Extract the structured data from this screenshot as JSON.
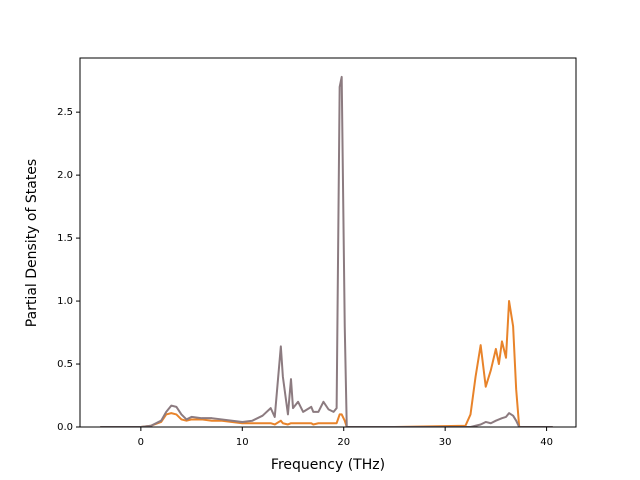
{
  "chart_data": {
    "type": "line",
    "x_label": "Frequency (THz)",
    "y_label": "Partial Density of States",
    "x": [
      -4,
      0,
      1,
      2,
      2.5,
      3,
      3.5,
      4,
      4.5,
      5,
      6,
      7,
      8,
      9,
      10,
      11,
      12,
      12.8,
      13.2,
      13.8,
      14,
      14.5,
      14.8,
      15,
      15.5,
      16,
      16.8,
      17,
      17.5,
      18,
      18.5,
      19,
      19.3,
      19.6,
      19.8,
      20.1,
      20.3,
      25,
      32,
      32.5,
      33,
      33.5,
      34,
      34.5,
      35,
      35.3,
      35.6,
      36,
      36.3,
      36.7,
      37,
      37.3,
      40.6
    ],
    "series": [
      {
        "color": "#e8832a",
        "values": [
          0,
          0,
          0.01,
          0.04,
          0.1,
          0.11,
          0.1,
          0.06,
          0.05,
          0.06,
          0.06,
          0.05,
          0.05,
          0.04,
          0.03,
          0.03,
          0.03,
          0.03,
          0.02,
          0.05,
          0.03,
          0.02,
          0.03,
          0.03,
          0.03,
          0.03,
          0.03,
          0.02,
          0.03,
          0.03,
          0.03,
          0.03,
          0.03,
          0.1,
          0.1,
          0.05,
          0,
          0,
          0.01,
          0.1,
          0.4,
          0.65,
          0.32,
          0.45,
          0.62,
          0.5,
          0.68,
          0.55,
          1.0,
          0.8,
          0.3,
          0,
          0
        ]
      },
      {
        "color": "#8c7b80",
        "values": [
          0,
          0,
          0.01,
          0.05,
          0.12,
          0.17,
          0.16,
          0.1,
          0.06,
          0.08,
          0.07,
          0.07,
          0.06,
          0.05,
          0.04,
          0.05,
          0.09,
          0.15,
          0.08,
          0.64,
          0.4,
          0.1,
          0.38,
          0.15,
          0.2,
          0.12,
          0.16,
          0.12,
          0.12,
          0.2,
          0.14,
          0.12,
          0.15,
          2.7,
          2.78,
          0.8,
          0,
          0,
          0,
          0,
          0.01,
          0.02,
          0.04,
          0.03,
          0.05,
          0.06,
          0.07,
          0.08,
          0.11,
          0.09,
          0.05,
          0,
          0
        ]
      }
    ],
    "xlim": [
      -6.0,
      42.9
    ],
    "ylim": [
      0,
      2.93
    ],
    "xticks": [
      0,
      10,
      20,
      30,
      40
    ],
    "yticks": [
      {
        "value": 0,
        "label": "0.0"
      },
      0.5,
      {
        "value": 1,
        "label": "1.0"
      },
      1.5,
      {
        "value": 2,
        "label": "2.0"
      },
      2.5
    ]
  }
}
